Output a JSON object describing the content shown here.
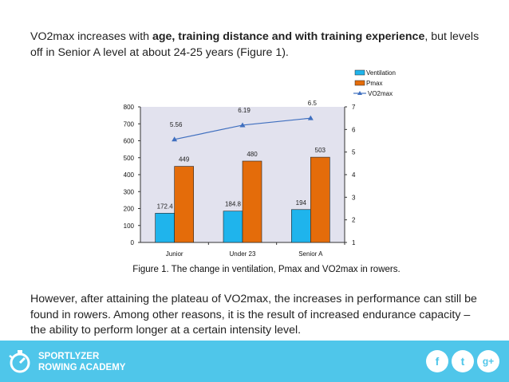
{
  "intro": {
    "part1": "VO2max increases with ",
    "bold": "age, training distance and with training experience",
    "part2": ", but levels off in Senior A level at about 24-25 years (Figure 1)."
  },
  "caption": "Figure 1. The change in ventilation, Pmax and VO2max in rowers.",
  "outro": "However, after attaining the plateau of VO2max, the increases in performance can still be found in rowers. Among other reasons, it is the result of increased endurance capacity – the ability to perform longer at a certain intensity level.",
  "footer": {
    "brand_line1": "SPORTLYZER",
    "brand_line2": "ROWING ACADEMY",
    "icons": [
      "stopwatch-logo-icon",
      "facebook-icon",
      "twitter-icon",
      "google-plus-icon"
    ],
    "facebook_glyph": "f",
    "twitter_glyph": "t",
    "gplus_glyph": "g+"
  },
  "colors": {
    "ventilation": "#1fb4ec",
    "pmax": "#e46c0a",
    "vo2max": "#3f6fbf",
    "plot_bg": "#e2e2ee",
    "footer": "#4fc6ea"
  },
  "chart_data": {
    "type": "bar",
    "categories": [
      "Junior",
      "Under 23",
      "Senior A"
    ],
    "series": [
      {
        "name": "Ventilation",
        "values": [
          172.4,
          184.8,
          194
        ],
        "labels": [
          "172.4",
          "184.8",
          "194"
        ],
        "axis": "left"
      },
      {
        "name": "Pmax",
        "values": [
          449,
          480,
          503
        ],
        "labels": [
          "449",
          "480",
          "503"
        ],
        "axis": "left"
      },
      {
        "name": "VO2max",
        "type": "line",
        "values": [
          5.56,
          6.19,
          6.5
        ],
        "labels": [
          "5.56",
          "6.19",
          "6.5"
        ],
        "axis": "right"
      }
    ],
    "ylim": [
      0,
      800
    ],
    "yticks": [
      "0",
      "100",
      "200",
      "300",
      "400",
      "500",
      "600",
      "700",
      "800"
    ],
    "y2lim": [
      1,
      7
    ],
    "y2ticks": [
      "1",
      "2",
      "3",
      "4",
      "5",
      "6",
      "7"
    ],
    "legend_position": "top-right",
    "grid": false
  }
}
